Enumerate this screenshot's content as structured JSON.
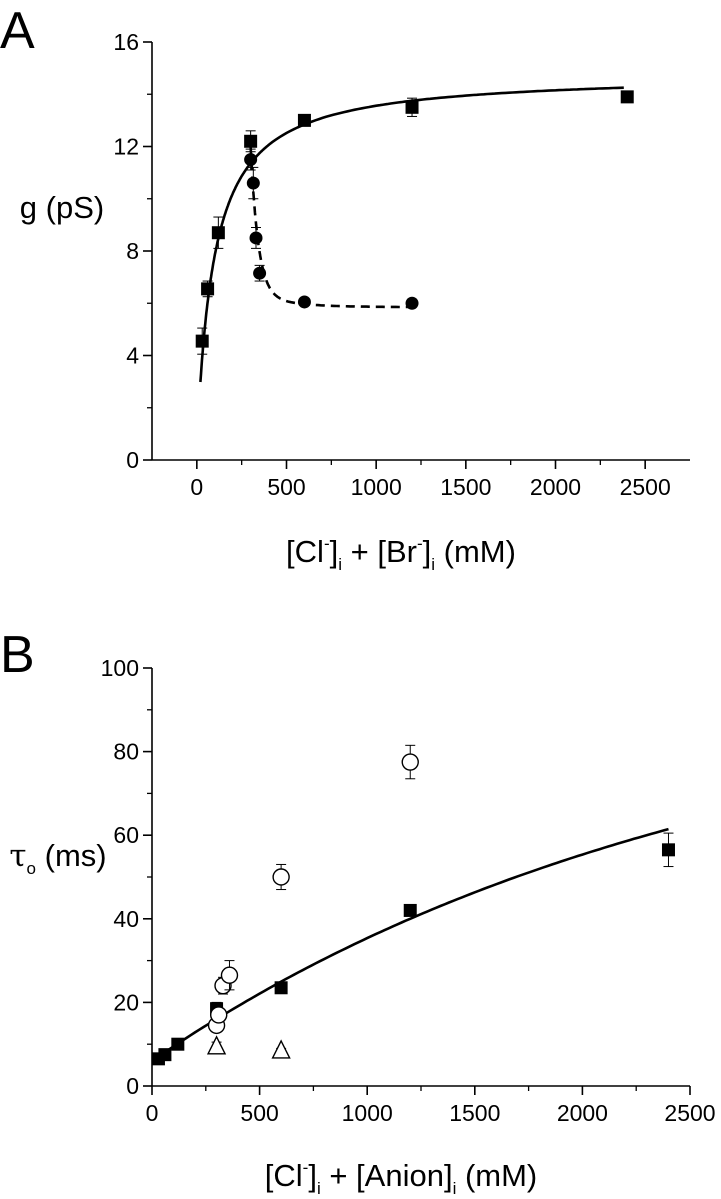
{
  "chart_data": [
    {
      "panel": "A",
      "type": "scatter",
      "xlabel": "[Cl⁻]ᵢ + [Br⁻]ᵢ (mM)",
      "xlabel_parts": [
        {
          "text": "[Cl",
          "style": "normal"
        },
        {
          "text": "-",
          "style": "sup"
        },
        {
          "text": "]",
          "style": "normal"
        },
        {
          "text": "i",
          "style": "sub"
        },
        {
          "text": " + [Br",
          "style": "normal"
        },
        {
          "text": "-",
          "style": "sup"
        },
        {
          "text": "]",
          "style": "normal"
        },
        {
          "text": "i",
          "style": "sub"
        },
        {
          "text": " (mM)",
          "style": "normal"
        }
      ],
      "ylabel": "g (pS)",
      "xlim": [
        -250,
        2750
      ],
      "ylim": [
        0,
        16
      ],
      "xticks": [
        0,
        500,
        1000,
        1500,
        2000,
        2500
      ],
      "yticks": [
        0,
        4,
        8,
        12,
        16
      ],
      "series": [
        {
          "marker": "filled-square",
          "fit": "solid",
          "x": [
            30,
            60,
            120,
            300,
            600,
            1200,
            2400
          ],
          "y": [
            4.55,
            6.55,
            8.7,
            12.2,
            13.0,
            13.5,
            13.9
          ],
          "err": [
            0.5,
            0.3,
            0.6,
            0.4,
            0.15,
            0.35,
            0.2
          ]
        },
        {
          "marker": "filled-circle",
          "fit": "dashed",
          "x": [
            300,
            315,
            330,
            350,
            600,
            1200
          ],
          "y": [
            11.5,
            10.6,
            8.5,
            7.15,
            6.05,
            6.0
          ],
          "err": [
            0.4,
            0.6,
            0.4,
            0.3,
            0.12,
            0.12
          ]
        }
      ]
    },
    {
      "panel": "B",
      "type": "scatter",
      "xlabel": "[Cl⁻]ᵢ + [Anion]ᵢ (mM)",
      "xlabel_parts": [
        {
          "text": "[Cl",
          "style": "normal"
        },
        {
          "text": "-",
          "style": "sup"
        },
        {
          "text": "]",
          "style": "normal"
        },
        {
          "text": "i",
          "style": "sub"
        },
        {
          "text": " + [Anion]",
          "style": "normal"
        },
        {
          "text": "i",
          "style": "sub"
        },
        {
          "text": " (mM)",
          "style": "normal"
        }
      ],
      "ylabel": "τₒ (ms)",
      "ylabel_parts": [
        {
          "text": "τ",
          "style": "symbol"
        },
        {
          "text": "o",
          "style": "sub"
        },
        {
          "text": " (ms)",
          "style": "normal"
        }
      ],
      "xlim": [
        0,
        2500
      ],
      "ylim": [
        0,
        100
      ],
      "xticks": [
        0,
        500,
        1000,
        1500,
        2000,
        2500
      ],
      "yticks": [
        0,
        20,
        40,
        60,
        80,
        100
      ],
      "series": [
        {
          "marker": "filled-square",
          "fit": "solid",
          "x": [
            30,
            60,
            120,
            300,
            600,
            1200,
            2400
          ],
          "y": [
            6.5,
            7.5,
            10.0,
            18.5,
            23.5,
            42.0,
            56.5
          ],
          "err": [
            0.5,
            0.5,
            0.8,
            1.5,
            1.3,
            1.2,
            4.0
          ]
        },
        {
          "marker": "open-circle",
          "fit": "none",
          "x": [
            300,
            310,
            330,
            360,
            600,
            1200
          ],
          "y": [
            14.5,
            17.0,
            24.0,
            26.5,
            50.0,
            77.5
          ],
          "err": [
            1.5,
            1.5,
            2.0,
            3.5,
            3.0,
            4.0
          ]
        },
        {
          "marker": "open-triangle",
          "fit": "none",
          "x": [
            300,
            600
          ],
          "y": [
            9.5,
            8.5
          ],
          "err": [
            1.0,
            0.5
          ]
        }
      ]
    }
  ],
  "panel_labels": [
    "A",
    "B"
  ]
}
